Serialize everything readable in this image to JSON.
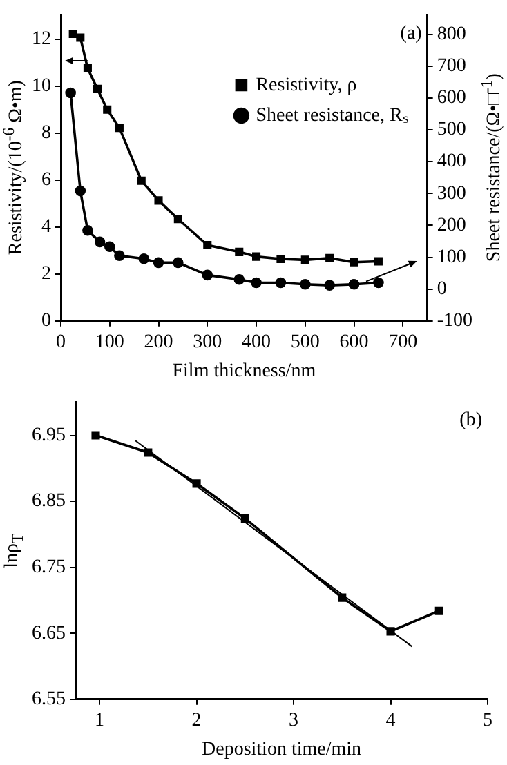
{
  "chart_data": [
    {
      "type": "line",
      "xlabel": "Film thickness/nm",
      "ylabel": "Resistivity/(10$^{-6}$ Ω•m)",
      "y2label": "Sheet resistance/(Ω•□$^{-1}$)",
      "annotations": [
        "(a)"
      ],
      "xlim": [
        0,
        750
      ],
      "xticks": [
        0,
        100,
        200,
        300,
        400,
        500,
        600,
        700
      ],
      "ylim": [
        0,
        13
      ],
      "yticks": [
        0,
        2,
        4,
        6,
        8,
        10,
        12
      ],
      "y2lim": [
        -100,
        858
      ],
      "y2ticks": [
        -100,
        0,
        100,
        200,
        300,
        400,
        500,
        600,
        700,
        800
      ],
      "legend": "top right",
      "line_style": "solid",
      "series": [
        {
          "name": "Resistivity, ρ",
          "color": "#000000",
          "marker": "square",
          "x": [
            25,
            40,
            55,
            75,
            95,
            120,
            165,
            200,
            240,
            300,
            365,
            400,
            450,
            500,
            550,
            600,
            650
          ],
          "values": [
            12.23,
            12.07,
            10.76,
            9.88,
            9.0,
            8.22,
            5.97,
            5.13,
            4.34,
            3.23,
            2.94,
            2.74,
            2.64,
            2.6,
            2.68,
            2.5,
            2.54
          ]
        },
        {
          "name": "Sheet resistance, Rₛ",
          "color": "#000000",
          "marker": "circle",
          "axis": "y2",
          "x": [
            20,
            40,
            55,
            80,
            100,
            120,
            170,
            200,
            240,
            300,
            365,
            400,
            450,
            500,
            550,
            600,
            650
          ],
          "values": [
            616,
            308,
            184,
            148,
            133,
            105,
            95,
            83,
            83,
            44,
            30,
            20,
            20,
            15,
            12,
            15,
            20
          ]
        }
      ]
    },
    {
      "type": "line",
      "xlabel": "Deposition time/min",
      "ylabel": "lnρ$_{T}$",
      "annotations": [
        "(b)"
      ],
      "xlim": [
        0.75,
        5
      ],
      "xticks": [
        1,
        2,
        3,
        4,
        5
      ],
      "ylim": [
        6.55,
        7.0
      ],
      "yticks": [
        6.55,
        6.65,
        6.75,
        6.85,
        6.95
      ],
      "line_style": "solid",
      "series": [
        {
          "color": "#000000",
          "marker": "square",
          "x": [
            0.96,
            1.5,
            2,
            2.5,
            3.5,
            4,
            4.5
          ],
          "values": [
            6.95,
            6.924,
            6.877,
            6.824,
            6.704,
            6.653,
            6.684
          ]
        },
        {
          "color": "#000000",
          "marker": "none",
          "x": [
            1.37,
            4.22
          ],
          "values": [
            6.942,
            6.63
          ]
        }
      ]
    }
  ]
}
